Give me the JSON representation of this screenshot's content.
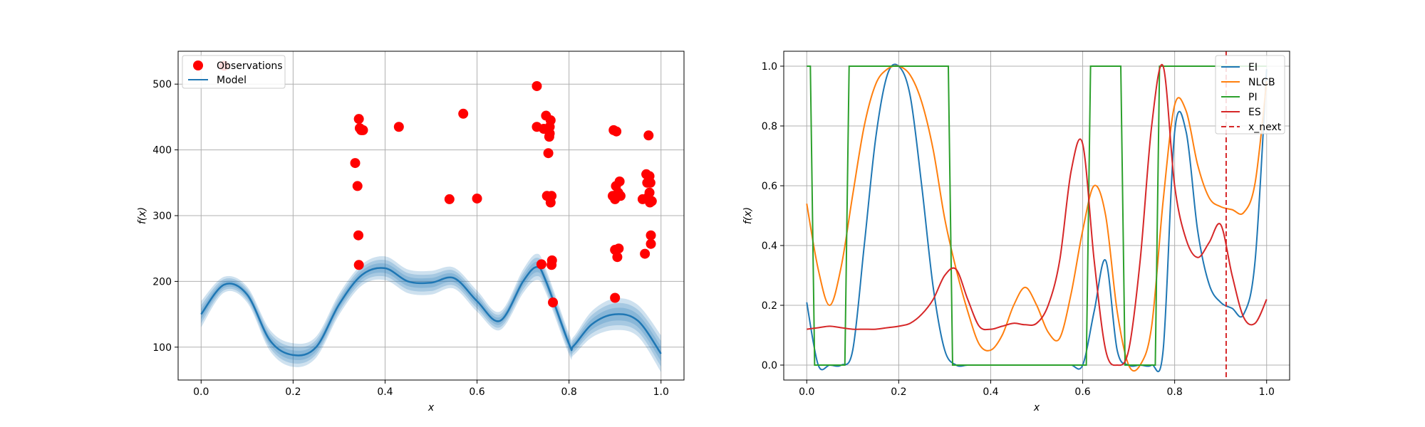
{
  "chart_data": [
    {
      "type": "scatter",
      "xlabel": "x",
      "ylabel": "f(x)",
      "xlim": [
        -0.05,
        1.05
      ],
      "ylim": [
        50,
        550
      ],
      "xticks": [
        "0.0",
        "0.2",
        "0.4",
        "0.6",
        "0.8",
        "1.0"
      ],
      "yticks": [
        "100",
        "200",
        "300",
        "400",
        "500"
      ],
      "grid": true,
      "legend_position": "top-left",
      "legend": [
        "Observations",
        "Model"
      ],
      "colors": {
        "observations": "#ff0000",
        "model": "#1f77b4"
      },
      "observations": {
        "name": "Observations",
        "x": [
          0.05,
          0.335,
          0.34,
          0.342,
          0.343,
          0.343,
          0.345,
          0.348,
          0.352,
          0.43,
          0.54,
          0.57,
          0.6,
          0.73,
          0.73,
          0.74,
          0.745,
          0.75,
          0.752,
          0.755,
          0.757,
          0.758,
          0.758,
          0.76,
          0.76,
          0.762,
          0.762,
          0.763,
          0.765,
          0.895,
          0.897,
          0.9,
          0.9,
          0.9,
          0.902,
          0.903,
          0.905,
          0.907,
          0.908,
          0.91,
          0.912,
          0.96,
          0.965,
          0.968,
          0.97,
          0.972,
          0.973,
          0.975,
          0.975,
          0.976,
          0.977,
          0.978,
          0.978,
          0.98
        ],
        "y": [
          528,
          380,
          345,
          270,
          225,
          447,
          433,
          430,
          430,
          435,
          325,
          455,
          326,
          497,
          435,
          226,
          432,
          452,
          330,
          395,
          420,
          425,
          435,
          445,
          320,
          330,
          225,
          232,
          168,
          330,
          430,
          175,
          248,
          325,
          345,
          428,
          237,
          335,
          250,
          352,
          330,
          325,
          242,
          363,
          350,
          328,
          422,
          360,
          335,
          320,
          350,
          257,
          270,
          322
        ]
      },
      "model": {
        "name": "Model",
        "x": [
          0.0,
          0.05,
          0.1,
          0.15,
          0.2,
          0.25,
          0.3,
          0.35,
          0.4,
          0.45,
          0.5,
          0.55,
          0.6,
          0.65,
          0.7,
          0.73,
          0.75,
          0.8,
          0.81,
          0.85,
          0.9,
          0.95,
          1.0
        ],
        "mean": [
          150,
          195,
          180,
          110,
          88,
          100,
          165,
          210,
          220,
          200,
          198,
          205,
          170,
          140,
          200,
          222,
          200,
          105,
          102,
          135,
          150,
          140,
          90
        ],
        "band": [
          10,
          6,
          6,
          8,
          9,
          8,
          8,
          8,
          9,
          9,
          9,
          8,
          8,
          7,
          9,
          10,
          9,
          8,
          7,
          10,
          12,
          12,
          14
        ]
      }
    },
    {
      "type": "line",
      "xlabel": "x",
      "ylabel": "f(x)",
      "xlim": [
        -0.05,
        1.05
      ],
      "ylim": [
        -0.05,
        1.05
      ],
      "xticks": [
        "0.0",
        "0.2",
        "0.4",
        "0.6",
        "0.8",
        "1.0"
      ],
      "yticks": [
        "0.0",
        "0.2",
        "0.4",
        "0.6",
        "0.8",
        "1.0"
      ],
      "grid": true,
      "legend_position": "top-right",
      "x": [
        0.0,
        0.025,
        0.05,
        0.075,
        0.1,
        0.125,
        0.15,
        0.175,
        0.2,
        0.225,
        0.25,
        0.275,
        0.3,
        0.325,
        0.35,
        0.375,
        0.4,
        0.425,
        0.45,
        0.475,
        0.5,
        0.525,
        0.55,
        0.575,
        0.6,
        0.625,
        0.65,
        0.675,
        0.7,
        0.725,
        0.75,
        0.775,
        0.8,
        0.825,
        0.85,
        0.875,
        0.9,
        0.925,
        0.95,
        0.975,
        1.0
      ],
      "series": [
        {
          "name": "EI",
          "color": "#1f77b4",
          "values": [
            0.21,
            0.0,
            0.0,
            0.0,
            0.05,
            0.4,
            0.76,
            0.97,
            1.0,
            0.9,
            0.6,
            0.26,
            0.05,
            0.0,
            0.0,
            0.0,
            0.0,
            0.0,
            0.0,
            0.0,
            0.0,
            0.0,
            0.0,
            0.0,
            0.0,
            0.18,
            0.35,
            0.05,
            0.0,
            0.0,
            0.0,
            0.05,
            0.78,
            0.78,
            0.45,
            0.27,
            0.21,
            0.19,
            0.17,
            0.35,
            0.99
          ]
        },
        {
          "name": "NLCB",
          "color": "#ff7f0e",
          "values": [
            0.54,
            0.32,
            0.2,
            0.33,
            0.57,
            0.8,
            0.94,
            0.99,
            1.0,
            0.97,
            0.88,
            0.72,
            0.49,
            0.32,
            0.18,
            0.07,
            0.05,
            0.1,
            0.2,
            0.26,
            0.2,
            0.11,
            0.09,
            0.24,
            0.45,
            0.6,
            0.5,
            0.18,
            0.0,
            0.0,
            0.13,
            0.55,
            0.87,
            0.85,
            0.67,
            0.56,
            0.53,
            0.52,
            0.51,
            0.61,
            0.95
          ]
        },
        {
          "name": "PI",
          "color": "#2ca02c",
          "values": [
            1.0,
            0.0,
            0.0,
            0.0,
            1.0,
            1.0,
            1.0,
            1.0,
            1.0,
            1.0,
            1.0,
            1.0,
            1.0,
            0.0,
            0.0,
            0.0,
            0.0,
            0.0,
            0.0,
            0.0,
            0.0,
            0.0,
            0.0,
            0.0,
            0.0,
            1.0,
            1.0,
            1.0,
            0.0,
            0.0,
            0.0,
            1.0,
            1.0,
            1.0,
            1.0,
            1.0,
            1.0,
            1.0,
            1.0,
            1.0,
            1.0
          ]
        },
        {
          "name": "ES",
          "color": "#d62728",
          "values": [
            0.12,
            0.125,
            0.13,
            0.125,
            0.12,
            0.12,
            0.12,
            0.125,
            0.13,
            0.14,
            0.17,
            0.22,
            0.3,
            0.32,
            0.22,
            0.13,
            0.12,
            0.13,
            0.14,
            0.135,
            0.14,
            0.2,
            0.35,
            0.65,
            0.74,
            0.35,
            0.05,
            0.0,
            0.05,
            0.35,
            0.8,
            1.0,
            0.6,
            0.42,
            0.36,
            0.41,
            0.47,
            0.3,
            0.16,
            0.14,
            0.22
          ]
        }
      ],
      "vline": {
        "name": "x_next",
        "x": 0.912,
        "color": "#d62728"
      },
      "legend": [
        "EI",
        "NLCB",
        "PI",
        "ES",
        "x_next"
      ]
    }
  ]
}
